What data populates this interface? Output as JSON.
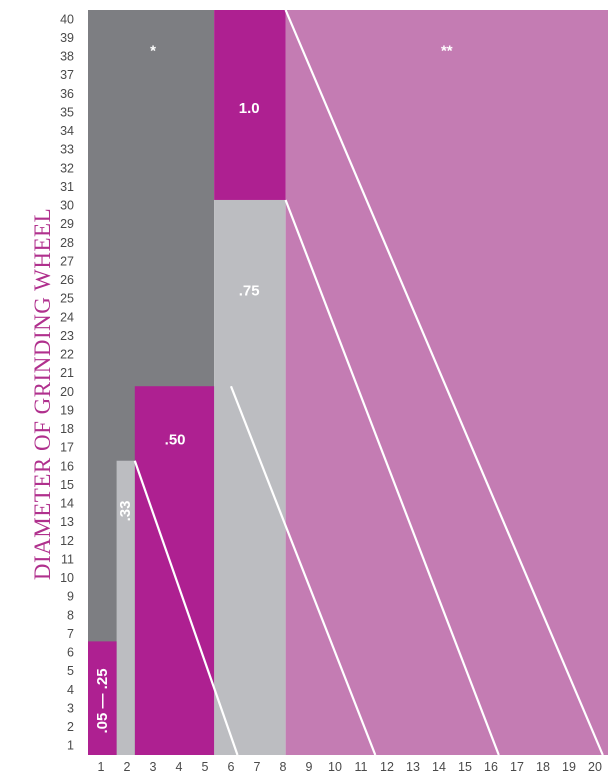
{
  "chart_data": {
    "type": "area",
    "ylabel": "DIAMETER OF GRINDING WHEEL",
    "xlabel": "",
    "xlim": [
      0.5,
      20.5
    ],
    "ylim": [
      0.5,
      40.5
    ],
    "x_ticks": [
      "1",
      "2",
      "3",
      "4",
      "5",
      "6",
      "7",
      "8",
      "9",
      "10",
      "11",
      "12",
      "13",
      "14",
      "15",
      "16",
      "17",
      "18",
      "19",
      "20"
    ],
    "y_ticks": [
      "1",
      "2",
      "3",
      "4",
      "5",
      "6",
      "7",
      "8",
      "9",
      "10",
      "11",
      "12",
      "13",
      "14",
      "15",
      "16",
      "17",
      "18",
      "19",
      "20",
      "21",
      "22",
      "23",
      "24",
      "25",
      "26",
      "27",
      "28",
      "29",
      "30",
      "31",
      "32",
      "33",
      "34",
      "35",
      "36",
      "37",
      "38",
      "39",
      "40"
    ],
    "colors": {
      "dark_gray": "#7d7e82",
      "light_gray": "#bcbdc1",
      "magenta": "#ae2091",
      "light_magenta": "#c47cb3",
      "line": "#ffffff"
    },
    "regions": [
      {
        "label": "*",
        "color": "dark_gray",
        "x0": 0.5,
        "x1": 5.35,
        "y_top": 40.5,
        "label_xy": [
          3.0,
          38.3
        ],
        "vertical": false
      },
      {
        "label": "**",
        "color": "light_magenta",
        "x0": 8.1,
        "x1": 20.5,
        "y_top": 40.5,
        "label_xy": [
          14.3,
          38.3
        ],
        "vertical": false
      },
      {
        "label": "1.0",
        "color": "magenta",
        "x0": 5.35,
        "x1": 8.1,
        "y_top": 40.5,
        "y_bottom": 30.3,
        "label_xy": [
          6.7,
          35.2
        ],
        "vertical": false
      },
      {
        "label": ".75",
        "color": "light_gray",
        "x0": 5.35,
        "x1": 8.1,
        "y_top": 30.3,
        "label_xy": [
          6.7,
          25.4
        ],
        "vertical": false
      },
      {
        "label": ".50",
        "color": "magenta",
        "x0": 2.3,
        "x1": 5.35,
        "y_top": 20.3,
        "label_xy": [
          3.85,
          17.4
        ],
        "vertical": false
      },
      {
        "label": ".33",
        "color": "light_gray",
        "x0": 1.6,
        "x1": 2.3,
        "y_top": 16.3,
        "label_xy": [
          1.95,
          13.6
        ],
        "vertical": true
      },
      {
        "label": ".05 — .25",
        "color": "magenta",
        "x0": 0.5,
        "x1": 1.6,
        "y_top": 6.6,
        "label_xy": [
          1.05,
          3.4
        ],
        "vertical": true
      }
    ],
    "diagonals": [
      {
        "from": [
          2.3,
          16.3
        ],
        "to": [
          6.25,
          0.5
        ]
      },
      {
        "from": [
          6.0,
          20.3
        ],
        "to": [
          11.55,
          0.5
        ]
      },
      {
        "from": [
          8.1,
          30.3
        ],
        "to": [
          16.3,
          0.5
        ]
      },
      {
        "from": [
          8.1,
          40.5
        ],
        "to": [
          20.3,
          0.5
        ]
      }
    ]
  }
}
